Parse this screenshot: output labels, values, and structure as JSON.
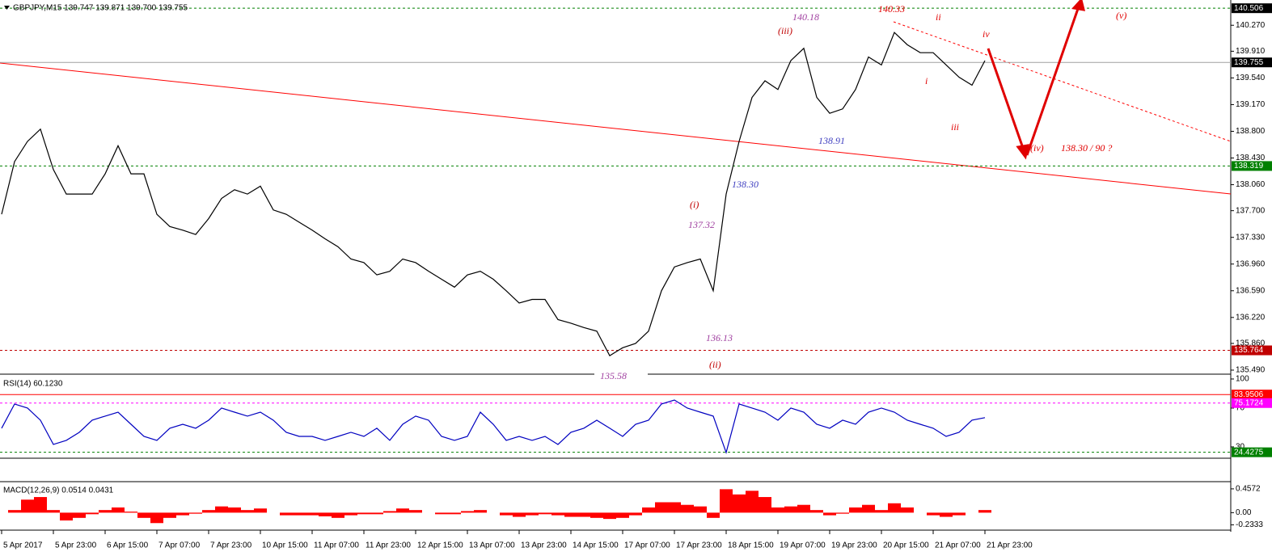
{
  "chart_data": [
    {
      "type": "line",
      "title": "GBPJPY,M15  139.747 139.871 139.700 139.755",
      "color": "#000000",
      "values": [
        137.65,
        138.38,
        138.66,
        138.83,
        138.27,
        137.93,
        137.93,
        137.93,
        138.21,
        138.6,
        138.21,
        138.21,
        137.65,
        137.48,
        137.43,
        137.37,
        137.59,
        137.87,
        137.99,
        137.93,
        138.04,
        137.71,
        137.65,
        137.54,
        137.43,
        137.31,
        137.2,
        137.03,
        136.98,
        136.81,
        136.86,
        137.03,
        136.98,
        136.86,
        136.75,
        136.64,
        136.81,
        136.86,
        136.75,
        136.59,
        136.42,
        136.47,
        136.47,
        136.19,
        136.14,
        136.08,
        136.03,
        135.69,
        135.8,
        135.86,
        136.03,
        136.59,
        136.92,
        136.98,
        137.03,
        136.59,
        137.93,
        138.66,
        139.27,
        139.5,
        139.38,
        139.78,
        139.95,
        139.27,
        139.05,
        139.11,
        139.38,
        139.83,
        139.72,
        140.17,
        140.0,
        139.89,
        139.89,
        139.72,
        139.55,
        139.44,
        139.78
      ],
      "xlim": [
        0,
        95
      ],
      "xticks": [
        {
          "value": 0,
          "label": "5 Apr 2017"
        },
        {
          "value": 4,
          "label": "5 Apr 23:00"
        },
        {
          "value": 8,
          "label": "6 Apr 15:00"
        },
        {
          "value": 12,
          "label": "7 Apr 07:00"
        },
        {
          "value": 16,
          "label": "7 Apr 23:00"
        },
        {
          "value": 20,
          "label": "10 Apr 15:00"
        },
        {
          "value": 24,
          "label": "11 Apr 07:00"
        },
        {
          "value": 28,
          "label": "11 Apr 23:00"
        },
        {
          "value": 32,
          "label": "12 Apr 15:00"
        },
        {
          "value": 36,
          "label": "13 Apr 07:00"
        },
        {
          "value": 40,
          "label": "13 Apr 23:00"
        },
        {
          "value": 44,
          "label": "14 Apr 15:00"
        },
        {
          "value": 48,
          "label": "17 Apr 07:00"
        },
        {
          "value": 52,
          "label": "17 Apr 23:00"
        },
        {
          "value": 56,
          "label": "18 Apr 15:00"
        },
        {
          "value": 60,
          "label": "19 Apr 07:00"
        },
        {
          "value": 64,
          "label": "19 Apr 23:00"
        },
        {
          "value": 68,
          "label": "20 Apr 15:00"
        },
        {
          "value": 72,
          "label": "21 Apr 07:00"
        },
        {
          "value": 76,
          "label": "21 Apr 23:00"
        }
      ],
      "ylim": [
        135.445,
        140.62
      ],
      "yticks": [
        {
          "value": 140.27,
          "label": "140.270"
        },
        {
          "value": 139.91,
          "label": "139.910"
        },
        {
          "value": 139.54,
          "label": "139.540"
        },
        {
          "value": 139.17,
          "label": "139.170"
        },
        {
          "value": 138.8,
          "label": "138.800"
        },
        {
          "value": 138.43,
          "label": "138.430"
        },
        {
          "value": 138.06,
          "label": "138.060"
        },
        {
          "value": 137.7,
          "label": "137.700"
        },
        {
          "value": 137.33,
          "label": "137.330"
        },
        {
          "value": 136.96,
          "label": "136.960"
        },
        {
          "value": 136.59,
          "label": "136.590"
        },
        {
          "value": 136.22,
          "label": "136.220"
        },
        {
          "value": 135.86,
          "label": "135.860"
        },
        {
          "value": 135.49,
          "label": "135.490"
        }
      ],
      "levels": [
        {
          "value": 140.506,
          "color": "#008000",
          "dashed": true,
          "bg": "#000000"
        },
        {
          "value": 139.755,
          "color": "#a0a0a0",
          "dashed": false,
          "bg": "#000000"
        },
        {
          "value": 138.319,
          "color": "#008000",
          "dashed": true,
          "bg": "#008000"
        },
        {
          "value": 135.764,
          "color": "#c00000",
          "dashed": true,
          "bg": "#c00000"
        }
      ],
      "annotations": [
        {
          "text": "140.18",
          "color": "#a040a0"
        },
        {
          "text": "(iii)",
          "color": "#c00000"
        },
        {
          "text": "140.33",
          "color": "#e00000"
        },
        {
          "text": "ii",
          "color": "#e00000"
        },
        {
          "text": "iv",
          "color": "#e00000"
        },
        {
          "text": "i",
          "color": "#e00000"
        },
        {
          "text": "iii",
          "color": "#e00000"
        },
        {
          "text": "(iv)",
          "color": "#e00000"
        },
        {
          "text": "138.30 / 90 ?",
          "color": "#e00000"
        },
        {
          "text": "(v)",
          "color": "#e00000"
        },
        {
          "text": "138.91",
          "color": "#4040c0"
        },
        {
          "text": "138.30",
          "color": "#4040c0"
        },
        {
          "text": "(i)",
          "color": "#c00000"
        },
        {
          "text": "137.32",
          "color": "#a040a0"
        },
        {
          "text": "136.13",
          "color": "#a040a0"
        },
        {
          "text": "(ii)",
          "color": "#c00000"
        },
        {
          "text": "135.58",
          "color": "#a040a0"
        }
      ]
    },
    {
      "type": "line",
      "title": "RSI(14) 60.1230",
      "color": "#0000c0",
      "values": [
        49.2,
        74.2,
        70.0,
        57.5,
        32.5,
        36.7,
        45.0,
        57.5,
        61.7,
        65.8,
        53.3,
        40.8,
        36.7,
        49.2,
        53.3,
        49.2,
        57.5,
        70.0,
        65.8,
        61.7,
        65.8,
        57.5,
        45.0,
        40.8,
        40.8,
        36.7,
        40.8,
        45.0,
        40.8,
        49.2,
        36.7,
        53.3,
        61.7,
        57.5,
        40.8,
        36.7,
        40.8,
        65.8,
        53.3,
        36.7,
        40.8,
        36.7,
        40.8,
        32.5,
        45.0,
        49.2,
        57.5,
        49.2,
        40.8,
        53.3,
        57.5,
        74.2,
        78.3,
        70.0,
        65.8,
        61.7,
        24.2,
        74.2,
        70.0,
        65.8,
        57.5,
        70.0,
        65.8,
        53.3,
        49.2,
        57.5,
        53.3,
        65.8,
        70.0,
        65.8,
        57.5,
        53.3,
        49.2,
        40.8,
        45.0,
        57.5,
        60.1
      ],
      "ylim": [
        18.3,
        103.3
      ],
      "yticks": [
        100,
        70,
        30
      ],
      "levels": [
        {
          "value": 83.9506,
          "color": "#ff0000",
          "dashed": false,
          "bg": "#ff0000"
        },
        {
          "value": 75.1724,
          "color": "#ff00ff",
          "dashed": true,
          "bg": "#ff00ff"
        },
        {
          "value": 24.4275,
          "color": "#008000",
          "dashed": true,
          "bg": "#008000"
        }
      ]
    },
    {
      "type": "bar",
      "title": "MACD(12,26,9) 0.0514 0.0431",
      "color": "#ff0000",
      "values": [
        0,
        0.05,
        0.25,
        0.3,
        0.05,
        -0.15,
        -0.1,
        -0.03,
        0.05,
        0.1,
        0.02,
        -0.1,
        -0.2,
        -0.1,
        -0.05,
        -0.02,
        0.05,
        0.12,
        0.1,
        0.05,
        0.08,
        0,
        -0.05,
        -0.05,
        -0.05,
        -0.07,
        -0.1,
        -0.05,
        -0.03,
        -0.03,
        0.03,
        0.08,
        0.05,
        0,
        -0.03,
        -0.03,
        0.03,
        0.05,
        0,
        -0.05,
        -0.08,
        -0.05,
        -0.03,
        -0.05,
        -0.08,
        -0.08,
        -0.1,
        -0.12,
        -0.1,
        -0.05,
        0.1,
        0.2,
        0.2,
        0.15,
        0.12,
        -0.1,
        0.45,
        0.35,
        0.42,
        0.3,
        0.1,
        0.12,
        0.15,
        0.05,
        -0.05,
        -0.02,
        0.1,
        0.15,
        0.05,
        0.18,
        0.1,
        0,
        -0.05,
        -0.08,
        -0.05,
        0,
        0.05
      ],
      "ylim": [
        -0.32,
        0.58
      ],
      "yticks": [
        0.4572,
        {
          "value": 0,
          "label": "0.00"
        },
        -0.2333
      ]
    }
  ]
}
